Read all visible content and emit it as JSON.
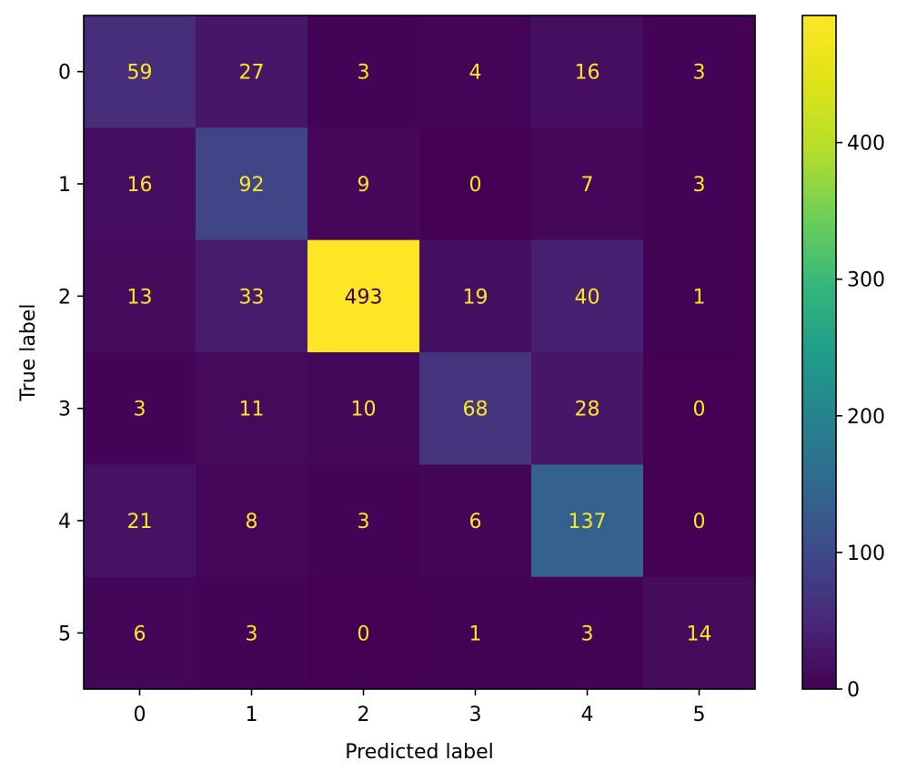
{
  "chart_data": {
    "type": "heatmap",
    "title": "",
    "xlabel": "Predicted label",
    "ylabel": "True label",
    "x_categories": [
      "0",
      "1",
      "2",
      "3",
      "4",
      "5"
    ],
    "y_categories": [
      "0",
      "1",
      "2",
      "3",
      "4",
      "5"
    ],
    "matrix": [
      [
        59,
        27,
        3,
        4,
        16,
        3
      ],
      [
        16,
        92,
        9,
        0,
        7,
        3
      ],
      [
        13,
        33,
        493,
        19,
        40,
        1
      ],
      [
        3,
        11,
        10,
        68,
        28,
        0
      ],
      [
        21,
        8,
        3,
        6,
        137,
        0
      ],
      [
        6,
        3,
        0,
        1,
        3,
        14
      ]
    ],
    "colormap": "viridis",
    "vmin": 0,
    "vmax": 493,
    "colorbar_ticks": [
      "0",
      "100",
      "200",
      "300",
      "400"
    ],
    "grid": false,
    "colors": {
      "low_text": "#fde725",
      "high_text": "#440154"
    }
  }
}
